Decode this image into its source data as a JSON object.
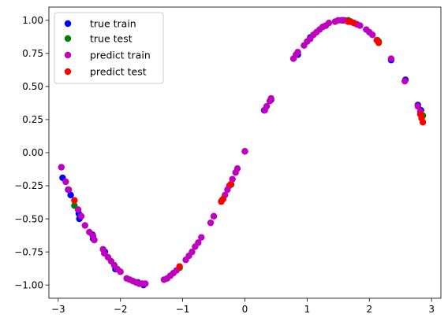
{
  "chart_data": {
    "type": "scatter",
    "xlim": [
      -3.15,
      3.15
    ],
    "ylim": [
      -1.1,
      1.1
    ],
    "x_ticks": [
      -3,
      -2,
      -1,
      0,
      1,
      2,
      3
    ],
    "x_tick_labels": [
      "−3",
      "−2",
      "−1",
      "0",
      "1",
      "2",
      "3"
    ],
    "y_ticks": [
      -1.0,
      -0.75,
      -0.5,
      -0.25,
      0.0,
      0.25,
      0.5,
      0.75,
      1.0
    ],
    "y_tick_labels": [
      "−1.00",
      "−0.75",
      "−0.50",
      "−0.25",
      "0.00",
      "0.25",
      "0.50",
      "0.75",
      "1.00"
    ],
    "grid": false,
    "legend_position": "top-left",
    "series": [
      {
        "name": "true train",
        "color": "#0000ff",
        "x": [
          -2.93,
          -2.84,
          -2.8,
          -2.67,
          -2.66,
          -2.45,
          -2.44,
          -2.25,
          -2.08,
          -1.72,
          -1.63,
          0.0,
          0.31,
          0.42,
          0.85,
          1.05,
          1.3,
          1.57,
          2.35,
          2.58,
          2.78,
          2.83
        ],
        "y": [
          -0.19,
          -0.28,
          -0.32,
          -0.46,
          -0.5,
          -0.62,
          -0.65,
          -0.75,
          -0.88,
          -0.98,
          -1.0,
          0.01,
          0.32,
          0.4,
          0.74,
          0.87,
          0.96,
          1.0,
          0.7,
          0.55,
          0.36,
          0.32
        ]
      },
      {
        "name": "true test",
        "color": "#008000",
        "x": [
          -2.74,
          -0.37,
          -0.22,
          -1.05,
          1.66,
          1.7,
          2.13,
          2.15,
          2.86
        ],
        "y": [
          -0.4,
          -0.36,
          -0.24,
          -0.87,
          1.0,
          0.99,
          0.85,
          0.84,
          0.28
        ]
      },
      {
        "name": "predict train",
        "color": "#bf00bf",
        "x": [
          -2.95,
          -2.88,
          -2.83,
          -2.68,
          -2.63,
          -2.57,
          -2.5,
          -2.44,
          -2.42,
          -2.28,
          -2.26,
          -2.2,
          -2.15,
          -2.1,
          -2.05,
          -2.0,
          -1.9,
          -1.85,
          -1.8,
          -1.75,
          -1.7,
          -1.65,
          -1.6,
          -1.3,
          -1.25,
          -1.2,
          -1.15,
          -1.1,
          -0.95,
          -0.9,
          -0.85,
          -0.8,
          -0.75,
          -0.7,
          -0.55,
          -0.5,
          -0.32,
          -0.28,
          -0.25,
          -0.2,
          -0.15,
          -0.12,
          0.0,
          0.32,
          0.35,
          0.4,
          0.42,
          0.78,
          0.82,
          0.85,
          0.95,
          1.0,
          1.05,
          1.1,
          1.15,
          1.2,
          1.25,
          1.3,
          1.35,
          1.45,
          1.5,
          1.55,
          1.6,
          1.75,
          1.8,
          1.85,
          1.95,
          2.0,
          2.05,
          2.35,
          2.57,
          2.78,
          2.82
        ],
        "y": [
          -0.11,
          -0.22,
          -0.28,
          -0.43,
          -0.48,
          -0.55,
          -0.6,
          -0.63,
          -0.66,
          -0.73,
          -0.76,
          -0.79,
          -0.82,
          -0.85,
          -0.88,
          -0.9,
          -0.95,
          -0.96,
          -0.97,
          -0.98,
          -0.99,
          -0.99,
          -0.99,
          -0.96,
          -0.95,
          -0.93,
          -0.91,
          -0.89,
          -0.81,
          -0.78,
          -0.75,
          -0.71,
          -0.68,
          -0.64,
          -0.53,
          -0.48,
          -0.32,
          -0.28,
          -0.25,
          -0.2,
          -0.15,
          -0.12,
          0.01,
          0.32,
          0.35,
          0.39,
          0.41,
          0.71,
          0.74,
          0.76,
          0.81,
          0.84,
          0.86,
          0.89,
          0.91,
          0.93,
          0.95,
          0.96,
          0.98,
          0.99,
          1.0,
          1.0,
          1.0,
          0.98,
          0.97,
          0.96,
          0.93,
          0.91,
          0.89,
          0.71,
          0.54,
          0.35,
          0.31
        ]
      },
      {
        "name": "predict test",
        "color": "#ff0000",
        "x": [
          -2.74,
          -0.38,
          -0.35,
          -0.23,
          -1.05,
          1.66,
          1.7,
          1.75,
          2.12,
          2.15,
          2.82,
          2.84,
          2.86
        ],
        "y": [
          -0.36,
          -0.37,
          -0.35,
          -0.24,
          -0.86,
          0.99,
          0.99,
          0.98,
          0.85,
          0.83,
          0.29,
          0.26,
          0.23
        ]
      }
    ]
  }
}
